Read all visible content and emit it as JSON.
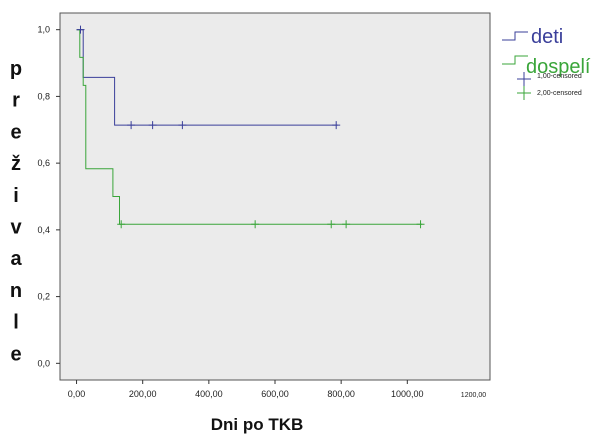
{
  "chart_data": {
    "type": "line",
    "step": true,
    "xlabel": "Dni po TKB",
    "ylabel": "preživanle",
    "ylabel_letters": [
      "p",
      "r",
      "e",
      "ž",
      "i",
      "v",
      "a",
      "n",
      "l",
      "e"
    ],
    "xlim": [
      -50,
      1250
    ],
    "ylim": [
      -0.05,
      1.05
    ],
    "x_ticks": [
      "0,00",
      "200,00",
      "400,00",
      "600,00",
      "800,00",
      "1000,00"
    ],
    "x_ticks_values": [
      0,
      200,
      400,
      600,
      800,
      1000
    ],
    "x_extra_tick": {
      "label": "1200,00",
      "value": 1200
    },
    "y_ticks": [
      "0,0",
      "0,2",
      "0,4",
      "0,6",
      "0,8",
      "1,0"
    ],
    "y_ticks_values": [
      0,
      0.2,
      0.4,
      0.6,
      0.8,
      1.0
    ],
    "grid": false,
    "background": "#ebebeb",
    "legend_position": "top-right",
    "series": [
      {
        "name": "deti",
        "color": "#3a3f9a",
        "steps": [
          [
            0,
            1.0
          ],
          [
            20,
            1.0
          ],
          [
            20,
            0.857
          ],
          [
            115,
            0.857
          ],
          [
            115,
            0.714
          ],
          [
            790,
            0.714
          ]
        ],
        "censored": [
          [
            12,
            1.0
          ],
          [
            165,
            0.714
          ],
          [
            230,
            0.714
          ],
          [
            320,
            0.714
          ],
          [
            785,
            0.714
          ]
        ]
      },
      {
        "name": "dospelí",
        "color": "#3aa53a",
        "steps": [
          [
            0,
            1.0
          ],
          [
            10,
            1.0
          ],
          [
            10,
            0.917
          ],
          [
            20,
            0.917
          ],
          [
            20,
            0.833
          ],
          [
            28,
            0.833
          ],
          [
            28,
            0.583
          ],
          [
            110,
            0.583
          ],
          [
            110,
            0.5
          ],
          [
            130,
            0.5
          ],
          [
            130,
            0.417
          ],
          [
            1045,
            0.417
          ]
        ],
        "censored": [
          [
            135,
            0.417
          ],
          [
            540,
            0.417
          ],
          [
            770,
            0.417
          ],
          [
            815,
            0.417
          ],
          [
            1040,
            0.417
          ]
        ]
      }
    ],
    "censor_legend": [
      {
        "label": "1,00-censored",
        "color": "#3a3f9a"
      },
      {
        "label": "2,00-censored",
        "color": "#3aa53a"
      }
    ]
  }
}
